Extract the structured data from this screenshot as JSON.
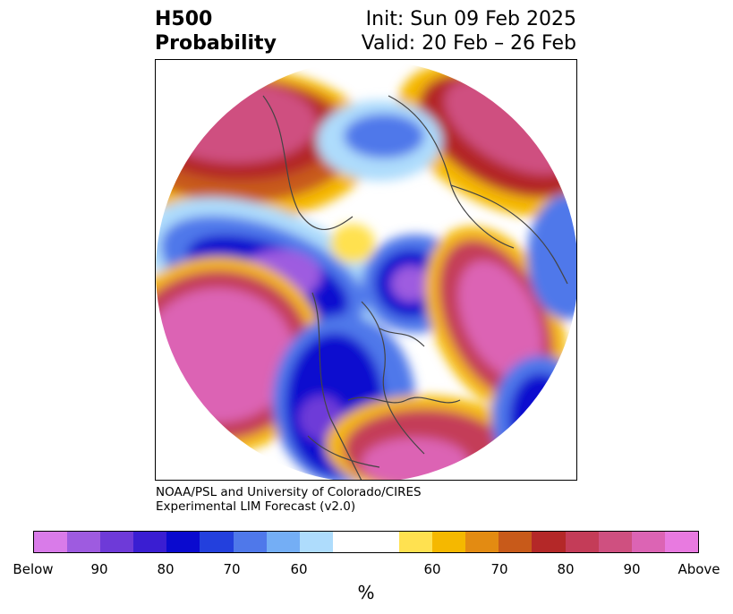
{
  "title": {
    "left_line1": "H500",
    "left_line2": "Probability",
    "right_line1": "Init: Sun 09 Feb 2025",
    "right_line2": "Valid: 20 Feb – 26 Feb"
  },
  "credit": {
    "line1": "NOAA/PSL and University of Colorado/CIRES",
    "line2": "Experimental LIM Forecast (v2.0)"
  },
  "colorbar": {
    "units": "%",
    "below_colors": [
      "#d97be9",
      "#9e5be0",
      "#6e3ad8",
      "#3a1ed2",
      "#0a0acf",
      "#2340dd",
      "#4f78ea",
      "#74aef5",
      "#aedcfc"
    ],
    "neutral_color": "#ffffff",
    "above_colors": [
      "#ffe150",
      "#f5b800",
      "#e38b12",
      "#c85a1a",
      "#b42828",
      "#c43c58",
      "#cf5080",
      "#dc64b4",
      "#e87ae0"
    ],
    "tick_labels": [
      "Below",
      "90",
      "80",
      "70",
      "60",
      "60",
      "70",
      "80",
      "90",
      "Above"
    ]
  },
  "map": {
    "projection": "north polar stereographic",
    "borders_color": "#444444"
  }
}
